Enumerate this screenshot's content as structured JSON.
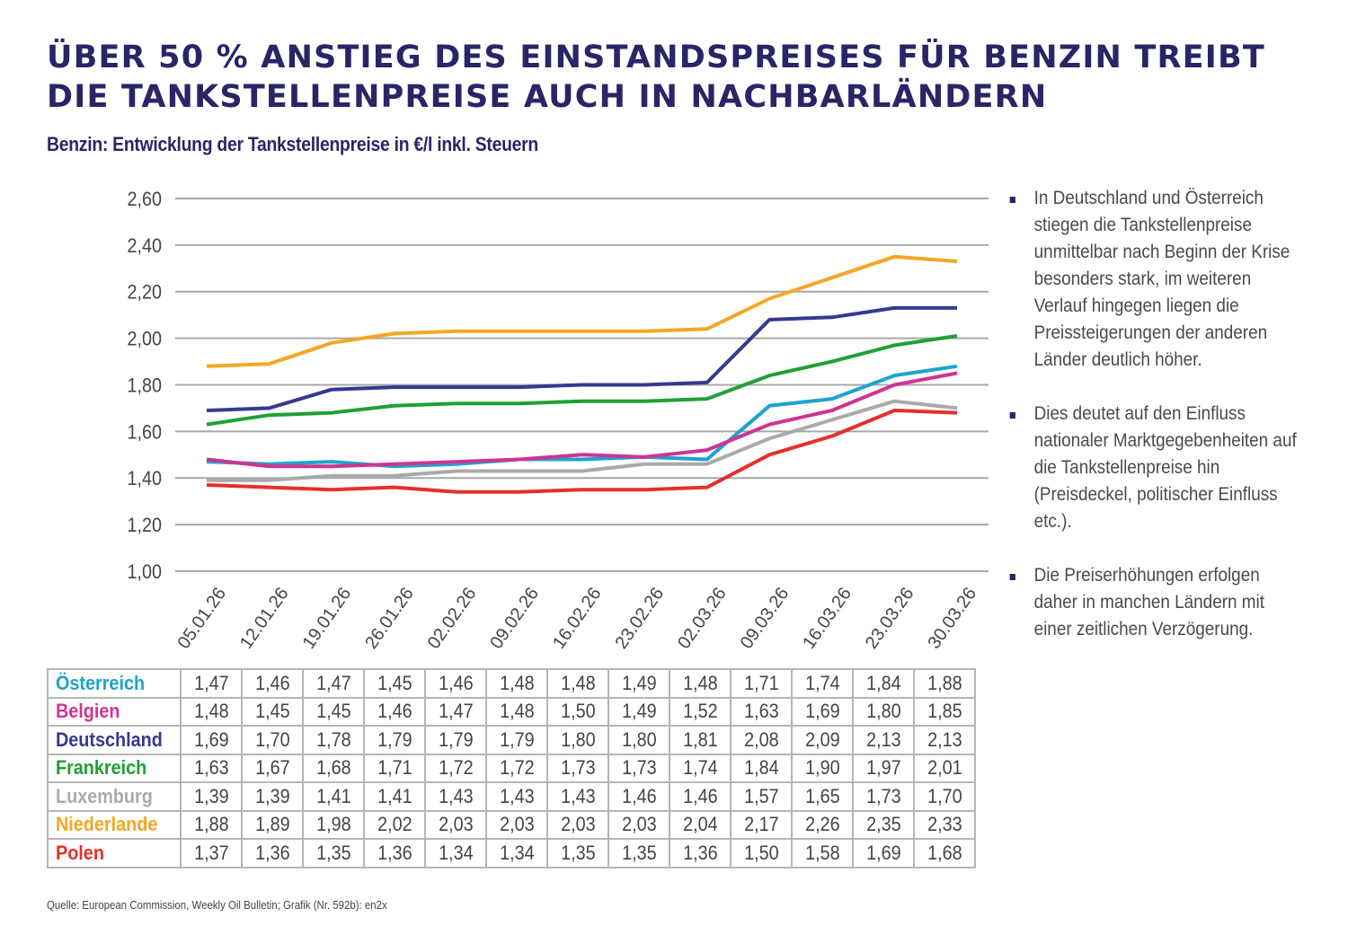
{
  "title": "ÜBER 50 % ANSTIEG DES EINSTANDSPREISES FÜR BENZIN TREIBT DIE TANKSTELLENPREISE AUCH IN NACHBARLÄNDERN",
  "subtitle": "Benzin: Entwicklung der Tankstellenpreise in €/l inkl. Steuern",
  "bullets": [
    "In Deutschland und Österreich stiegen die Tankstellenpreise unmittelbar nach Beginn der Krise besonders stark, im weiteren Verlauf hingegen liegen die Preissteigerungen der anderen Länder deutlich höher.",
    "Dies deutet auf den Einfluss nationaler Marktgegebenheiten auf die Tankstellenpreise hin  (Preisdeckel, politischer Einfluss etc.).",
    "Die Preiserhöhungen erfolgen daher in manchen Ländern mit einer zeitlichen Verzögerung."
  ],
  "source": "Quelle: European Commission, Weekly Oil Bulletin; Grafik (Nr. 592b): en2x",
  "chart_data": {
    "type": "line",
    "title": "Benzin: Entwicklung der Tankstellenpreise in €/l inkl. Steuern",
    "xlabel": "",
    "ylabel": "€/l",
    "ylim": [
      1.0,
      2.6
    ],
    "yticks": [
      1.0,
      1.2,
      1.4,
      1.6,
      1.8,
      2.0,
      2.2,
      2.4,
      2.6
    ],
    "ytick_labels": [
      "1,00",
      "1,20",
      "1,40",
      "1,60",
      "1,80",
      "2,00",
      "2,20",
      "2,40",
      "2,60"
    ],
    "grid": true,
    "legend": "table-below",
    "categories": [
      "05.01.26",
      "12.01.26",
      "19.01.26",
      "26.01.26",
      "02.02.26",
      "09.02.26",
      "16.02.26",
      "23.02.26",
      "02.03.26",
      "09.03.26",
      "16.03.26",
      "23.03.26",
      "30.03.26"
    ],
    "series": [
      {
        "name": "Österreich",
        "color": "#1ea3cf",
        "values": [
          1.47,
          1.46,
          1.47,
          1.45,
          1.46,
          1.48,
          1.48,
          1.49,
          1.48,
          1.71,
          1.74,
          1.84,
          1.88
        ]
      },
      {
        "name": "Belgien",
        "color": "#cf3493",
        "values": [
          1.48,
          1.45,
          1.45,
          1.46,
          1.47,
          1.48,
          1.5,
          1.49,
          1.52,
          1.63,
          1.69,
          1.8,
          1.85
        ]
      },
      {
        "name": "Deutschland",
        "color": "#36398f",
        "values": [
          1.69,
          1.7,
          1.78,
          1.79,
          1.79,
          1.79,
          1.8,
          1.8,
          1.81,
          2.08,
          2.09,
          2.13,
          2.13
        ]
      },
      {
        "name": "Frankreich",
        "color": "#1fa037",
        "values": [
          1.63,
          1.67,
          1.68,
          1.71,
          1.72,
          1.72,
          1.73,
          1.73,
          1.74,
          1.84,
          1.9,
          1.97,
          2.01
        ]
      },
      {
        "name": "Luxemburg",
        "color": "#a9aaad",
        "values": [
          1.39,
          1.39,
          1.41,
          1.41,
          1.43,
          1.43,
          1.43,
          1.46,
          1.46,
          1.57,
          1.65,
          1.73,
          1.7
        ]
      },
      {
        "name": "Niederlande",
        "color": "#f5a623",
        "values": [
          1.88,
          1.89,
          1.98,
          2.02,
          2.03,
          2.03,
          2.03,
          2.03,
          2.04,
          2.17,
          2.26,
          2.35,
          2.33
        ]
      },
      {
        "name": "Polen",
        "color": "#e5302a",
        "values": [
          1.37,
          1.36,
          1.35,
          1.36,
          1.34,
          1.34,
          1.35,
          1.35,
          1.36,
          1.5,
          1.58,
          1.69,
          1.68
        ]
      }
    ]
  },
  "table": {
    "rows": [
      {
        "name": "Österreich",
        "color": "#1ea3cf",
        "values": [
          "1,47",
          "1,46",
          "1,47",
          "1,45",
          "1,46",
          "1,48",
          "1,48",
          "1,49",
          "1,48",
          "1,71",
          "1,74",
          "1,84",
          "1,88"
        ]
      },
      {
        "name": "Belgien",
        "color": "#cf3493",
        "values": [
          "1,48",
          "1,45",
          "1,45",
          "1,46",
          "1,47",
          "1,48",
          "1,50",
          "1,49",
          "1,52",
          "1,63",
          "1,69",
          "1,80",
          "1,85"
        ]
      },
      {
        "name": "Deutschland",
        "color": "#36398f",
        "values": [
          "1,69",
          "1,70",
          "1,78",
          "1,79",
          "1,79",
          "1,79",
          "1,80",
          "1,80",
          "1,81",
          "2,08",
          "2,09",
          "2,13",
          "2,13"
        ]
      },
      {
        "name": "Frankreich",
        "color": "#1fa037",
        "values": [
          "1,63",
          "1,67",
          "1,68",
          "1,71",
          "1,72",
          "1,72",
          "1,73",
          "1,73",
          "1,74",
          "1,84",
          "1,90",
          "1,97",
          "2,01"
        ]
      },
      {
        "name": "Luxemburg",
        "color": "#a9aaad",
        "values": [
          "1,39",
          "1,39",
          "1,41",
          "1,41",
          "1,43",
          "1,43",
          "1,43",
          "1,46",
          "1,46",
          "1,57",
          "1,65",
          "1,73",
          "1,70"
        ]
      },
      {
        "name": "Niederlande",
        "color": "#f5a623",
        "values": [
          "1,88",
          "1,89",
          "1,98",
          "2,02",
          "2,03",
          "2,03",
          "2,03",
          "2,03",
          "2,04",
          "2,17",
          "2,26",
          "2,35",
          "2,33"
        ]
      },
      {
        "name": "Polen",
        "color": "#e5302a",
        "values": [
          "1,37",
          "1,36",
          "1,35",
          "1,36",
          "1,34",
          "1,34",
          "1,35",
          "1,35",
          "1,36",
          "1,50",
          "1,58",
          "1,69",
          "1,68"
        ]
      }
    ]
  },
  "colors": {
    "title": "#2a2566",
    "grid": "#a8a8a8",
    "text": "#444444"
  }
}
